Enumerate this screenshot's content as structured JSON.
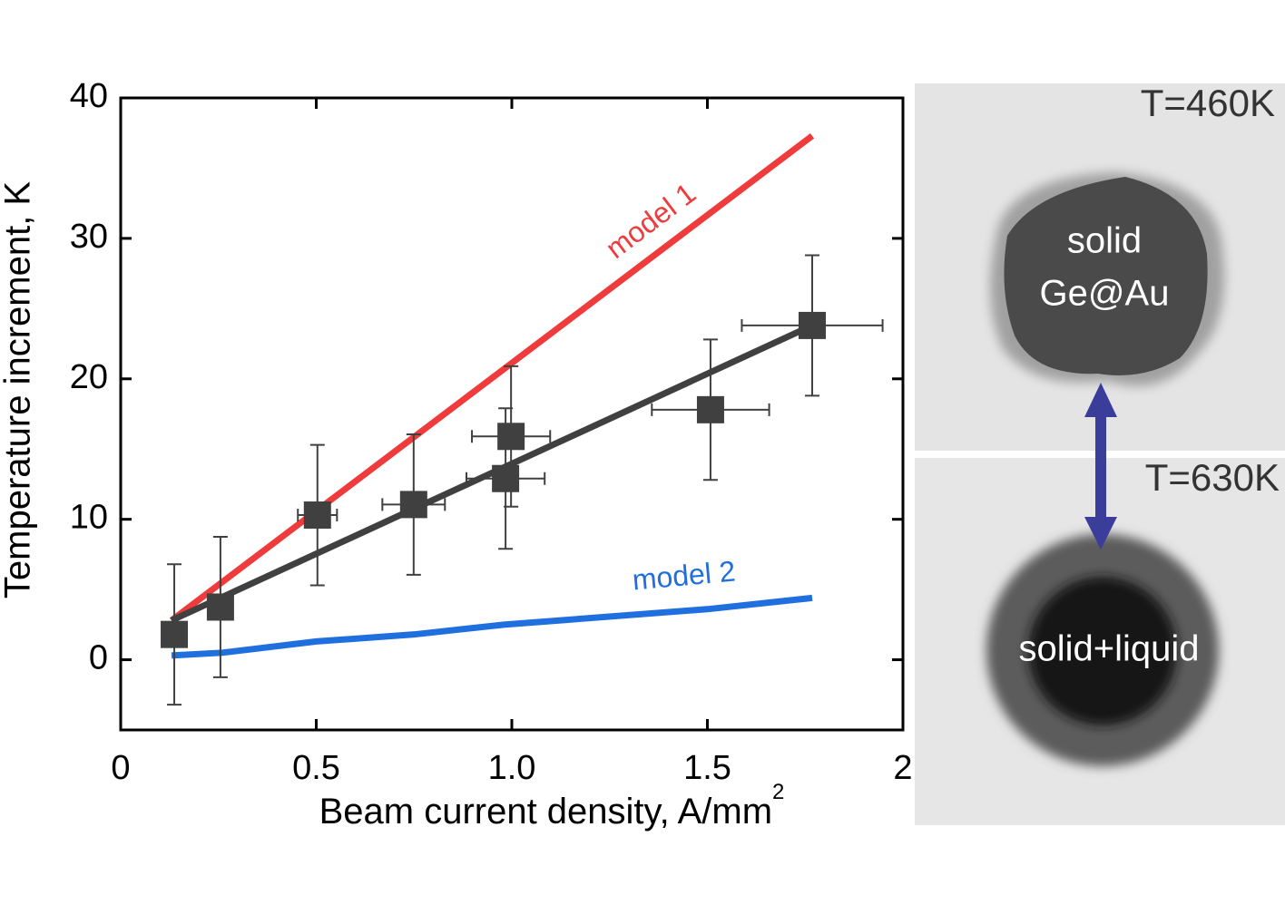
{
  "chart_data": {
    "type": "scatter",
    "x_label": "Beam current density, A/mm",
    "x_label_sup": "2",
    "y_label": "Temperature increment, K",
    "xlim": [
      0,
      2
    ],
    "ylim": [
      -5,
      40
    ],
    "xticks": [
      0,
      0.5,
      {
        "value": 1,
        "label": "1.0"
      },
      1.5,
      2
    ],
    "yticks": [
      0,
      10,
      20,
      30,
      40
    ],
    "points": {
      "color": "#404040",
      "x": [
        0.137,
        0.255,
        0.503,
        0.749,
        0.984,
        0.998,
        1.508,
        1.768
      ],
      "values": [
        1.8,
        3.75,
        10.3,
        11.05,
        12.9,
        15.9,
        17.8,
        23.8
      ],
      "xerr": [
        0,
        0,
        0.05,
        0.08,
        0.1,
        0.1,
        0.15,
        0.18
      ],
      "yerr": [
        5,
        5,
        5,
        5,
        5,
        5,
        5,
        5
      ]
    },
    "lines": [
      {
        "label": "model 1",
        "color": "#ef3b3b",
        "x": [
          0.13,
          1.768
        ],
        "values": [
          2.8,
          37.3
        ]
      },
      {
        "label": "model 2",
        "color": "#1f6fde",
        "x": [
          0.13,
          0.26,
          0.5,
          0.75,
          0.98,
          1.5,
          1.768
        ],
        "values": [
          0.3,
          0.5,
          1.3,
          1.8,
          2.5,
          3.6,
          4.4
        ]
      },
      {
        "color": "#404040",
        "x": [
          0.13,
          1.768
        ],
        "values": [
          2.8,
          23.8
        ]
      }
    ]
  },
  "images": {
    "top": {
      "temperature": "T=460K",
      "label_lines": [
        "solid",
        "Ge@Au"
      ]
    },
    "bottom": {
      "temperature": "T=630K",
      "label": "solid+liquid"
    }
  }
}
